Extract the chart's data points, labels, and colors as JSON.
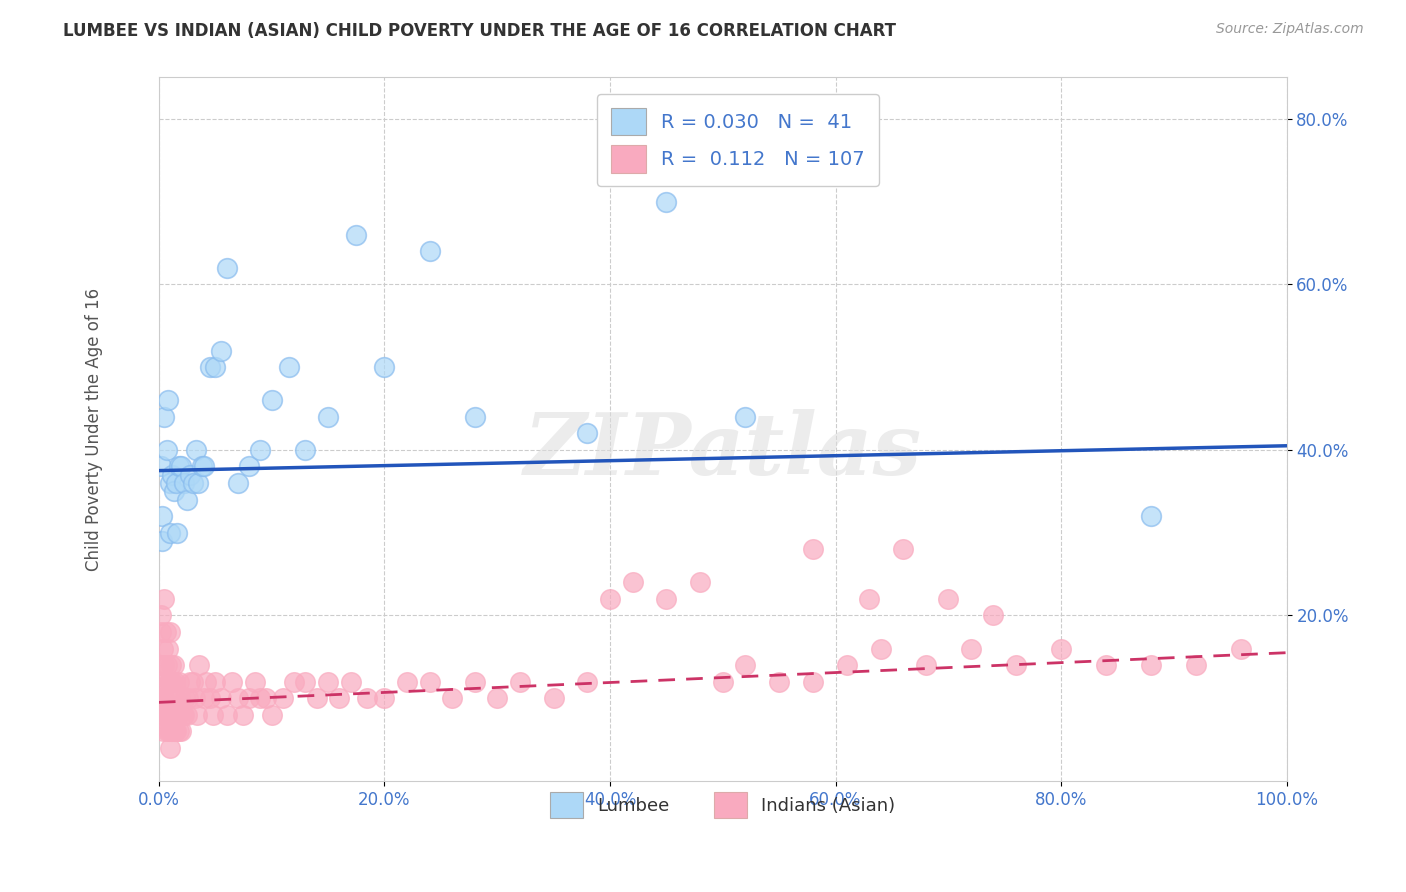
{
  "title": "LUMBEE VS INDIAN (ASIAN) CHILD POVERTY UNDER THE AGE OF 16 CORRELATION CHART",
  "source": "Source: ZipAtlas.com",
  "ylabel": "Child Poverty Under the Age of 16",
  "xlabel": "",
  "legend_label1": "Lumbee",
  "legend_label2": "Indians (Asian)",
  "r1": 0.03,
  "n1": 41,
  "r2": 0.112,
  "n2": 107,
  "color1": "#ADD8F7",
  "color2": "#F9AABF",
  "line_color1": "#2255BB",
  "line_color2": "#CC3366",
  "background_color": "#FFFFFF",
  "tick_color": "#4477CC",
  "lumbee_x": [
    0.002,
    0.003,
    0.003,
    0.005,
    0.007,
    0.008,
    0.01,
    0.01,
    0.012,
    0.013,
    0.015,
    0.016,
    0.018,
    0.02,
    0.022,
    0.025,
    0.028,
    0.03,
    0.033,
    0.035,
    0.038,
    0.04,
    0.045,
    0.05,
    0.055,
    0.06,
    0.07,
    0.08,
    0.09,
    0.1,
    0.115,
    0.13,
    0.15,
    0.175,
    0.2,
    0.24,
    0.28,
    0.38,
    0.45,
    0.52,
    0.88
  ],
  "lumbee_y": [
    0.38,
    0.29,
    0.32,
    0.44,
    0.4,
    0.46,
    0.3,
    0.36,
    0.37,
    0.35,
    0.36,
    0.3,
    0.38,
    0.38,
    0.36,
    0.34,
    0.37,
    0.36,
    0.4,
    0.36,
    0.38,
    0.38,
    0.5,
    0.5,
    0.52,
    0.62,
    0.36,
    0.38,
    0.4,
    0.46,
    0.5,
    0.4,
    0.44,
    0.66,
    0.5,
    0.64,
    0.44,
    0.42,
    0.7,
    0.44,
    0.32
  ],
  "indian_x": [
    0.001,
    0.002,
    0.002,
    0.002,
    0.003,
    0.003,
    0.004,
    0.004,
    0.004,
    0.005,
    0.005,
    0.005,
    0.006,
    0.006,
    0.006,
    0.007,
    0.007,
    0.008,
    0.008,
    0.008,
    0.009,
    0.009,
    0.01,
    0.01,
    0.01,
    0.01,
    0.011,
    0.011,
    0.012,
    0.012,
    0.013,
    0.013,
    0.014,
    0.014,
    0.015,
    0.015,
    0.016,
    0.017,
    0.018,
    0.018,
    0.019,
    0.02,
    0.021,
    0.022,
    0.023,
    0.025,
    0.026,
    0.028,
    0.03,
    0.032,
    0.034,
    0.036,
    0.04,
    0.042,
    0.045,
    0.048,
    0.05,
    0.055,
    0.06,
    0.065,
    0.07,
    0.075,
    0.08,
    0.085,
    0.09,
    0.095,
    0.1,
    0.11,
    0.12,
    0.13,
    0.14,
    0.15,
    0.16,
    0.17,
    0.185,
    0.2,
    0.22,
    0.24,
    0.26,
    0.28,
    0.3,
    0.32,
    0.35,
    0.38,
    0.4,
    0.42,
    0.45,
    0.48,
    0.5,
    0.52,
    0.55,
    0.58,
    0.61,
    0.64,
    0.68,
    0.72,
    0.76,
    0.8,
    0.84,
    0.88,
    0.92,
    0.96,
    0.58,
    0.63,
    0.66,
    0.7,
    0.74
  ],
  "indian_y": [
    0.1,
    0.14,
    0.18,
    0.2,
    0.08,
    0.12,
    0.06,
    0.1,
    0.16,
    0.1,
    0.14,
    0.22,
    0.08,
    0.12,
    0.18,
    0.06,
    0.14,
    0.08,
    0.1,
    0.16,
    0.06,
    0.12,
    0.04,
    0.08,
    0.12,
    0.18,
    0.06,
    0.14,
    0.06,
    0.12,
    0.06,
    0.14,
    0.06,
    0.12,
    0.06,
    0.1,
    0.08,
    0.08,
    0.06,
    0.12,
    0.1,
    0.06,
    0.08,
    0.08,
    0.1,
    0.08,
    0.1,
    0.12,
    0.12,
    0.1,
    0.08,
    0.14,
    0.1,
    0.12,
    0.1,
    0.08,
    0.12,
    0.1,
    0.08,
    0.12,
    0.1,
    0.08,
    0.1,
    0.12,
    0.1,
    0.1,
    0.08,
    0.1,
    0.12,
    0.12,
    0.1,
    0.12,
    0.1,
    0.12,
    0.1,
    0.1,
    0.12,
    0.12,
    0.1,
    0.12,
    0.1,
    0.12,
    0.1,
    0.12,
    0.22,
    0.24,
    0.22,
    0.24,
    0.12,
    0.14,
    0.12,
    0.12,
    0.14,
    0.16,
    0.14,
    0.16,
    0.14,
    0.16,
    0.14,
    0.14,
    0.14,
    0.16,
    0.28,
    0.22,
    0.28,
    0.22,
    0.2
  ],
  "xlim": [
    0.0,
    1.0
  ],
  "ylim": [
    0.0,
    0.85
  ],
  "xticks": [
    0.0,
    0.2,
    0.4,
    0.6,
    0.8,
    1.0
  ],
  "xtick_labels": [
    "0.0%",
    "20.0%",
    "40.0%",
    "60.0%",
    "80.0%",
    "100.0%"
  ],
  "yticks": [
    0.2,
    0.4,
    0.6,
    0.8
  ],
  "ytick_labels": [
    "20.0%",
    "40.0%",
    "60.0%",
    "80.0%"
  ],
  "lumbee_line_start": 0.375,
  "lumbee_line_end": 0.405,
  "indian_line_start": 0.095,
  "indian_line_end": 0.155,
  "watermark": "ZIPatlas"
}
